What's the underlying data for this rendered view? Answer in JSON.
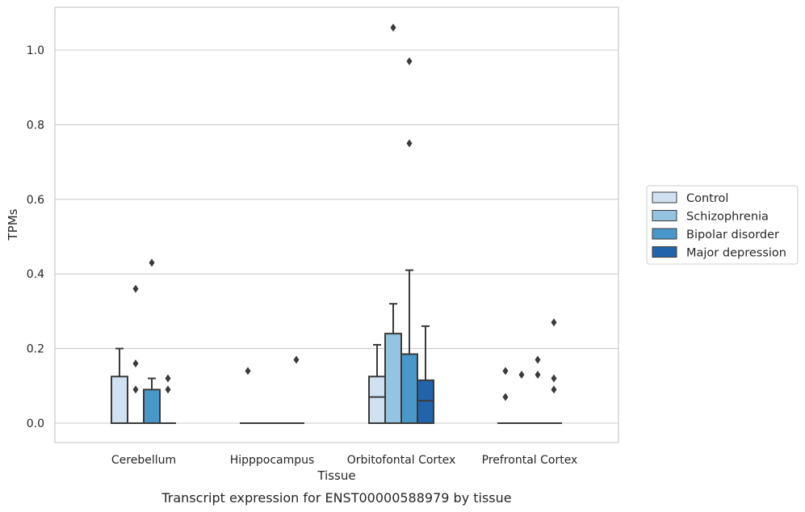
{
  "chart_data": {
    "type": "box",
    "caption": "Transcript expression for ENST00000588979 by tissue",
    "xlabel": "Tissue",
    "ylabel": "TPMs",
    "ylim": [
      -0.05,
      1.12
    ],
    "yticks": [
      0.0,
      0.2,
      0.4,
      0.6,
      0.8,
      1.0
    ],
    "ytick_labels": [
      "0.0",
      "0.2",
      "0.4",
      "0.6",
      "0.8",
      "1.0"
    ],
    "grid": "horizontal",
    "legend_position": "right",
    "categories": [
      "Cerebellum",
      "Hipppocampus",
      "Orbitofontal Cortex",
      "Prefrontal Cortex"
    ],
    "series": [
      {
        "name": "Control",
        "color": "#d0e1f2",
        "boxes": [
          {
            "q1": 0.0,
            "median": 0.0,
            "q3": 0.125,
            "whisker_low": 0.0,
            "whisker_high": 0.2,
            "outliers": []
          },
          {
            "q1": 0.0,
            "median": 0.0,
            "q3": 0.0,
            "whisker_low": 0.0,
            "whisker_high": 0.0,
            "outliers": [
              0.14
            ]
          },
          {
            "q1": 0.0,
            "median": 0.07,
            "q3": 0.125,
            "whisker_low": 0.0,
            "whisker_high": 0.21,
            "outliers": []
          },
          {
            "q1": 0.0,
            "median": 0.0,
            "q3": 0.0,
            "whisker_low": 0.0,
            "whisker_high": 0.0,
            "outliers": [
              0.14,
              0.07
            ]
          }
        ]
      },
      {
        "name": "Schizophrenia",
        "color": "#94c4df",
        "boxes": [
          {
            "q1": 0.0,
            "median": 0.0,
            "q3": 0.0,
            "whisker_low": 0.0,
            "whisker_high": 0.0,
            "outliers": [
              0.36,
              0.16,
              0.09
            ]
          },
          {
            "q1": 0.0,
            "median": 0.0,
            "q3": 0.0,
            "whisker_low": 0.0,
            "whisker_high": 0.0,
            "outliers": []
          },
          {
            "q1": 0.0,
            "median": 0.0,
            "q3": 0.24,
            "whisker_low": 0.0,
            "whisker_high": 0.32,
            "outliers": [
              1.06
            ]
          },
          {
            "q1": 0.0,
            "median": 0.0,
            "q3": 0.0,
            "whisker_low": 0.0,
            "whisker_high": 0.0,
            "outliers": [
              0.13
            ]
          }
        ]
      },
      {
        "name": "Bipolar disorder",
        "color": "#4a98c9",
        "boxes": [
          {
            "q1": 0.0,
            "median": 0.0,
            "q3": 0.09,
            "whisker_low": 0.0,
            "whisker_high": 0.12,
            "outliers": [
              0.43
            ]
          },
          {
            "q1": 0.0,
            "median": 0.0,
            "q3": 0.0,
            "whisker_low": 0.0,
            "whisker_high": 0.0,
            "outliers": []
          },
          {
            "q1": 0.0,
            "median": 0.0,
            "q3": 0.185,
            "whisker_low": 0.0,
            "whisker_high": 0.41,
            "outliers": [
              0.97,
              0.75
            ]
          },
          {
            "q1": 0.0,
            "median": 0.0,
            "q3": 0.0,
            "whisker_low": 0.0,
            "whisker_high": 0.0,
            "outliers": [
              0.17,
              0.13
            ]
          }
        ]
      },
      {
        "name": "Major depression",
        "color": "#2164ab",
        "boxes": [
          {
            "q1": 0.0,
            "median": 0.0,
            "q3": 0.0,
            "whisker_low": 0.0,
            "whisker_high": 0.0,
            "outliers": [
              0.12,
              0.09
            ]
          },
          {
            "q1": 0.0,
            "median": 0.0,
            "q3": 0.0,
            "whisker_low": 0.0,
            "whisker_high": 0.0,
            "outliers": [
              0.17
            ]
          },
          {
            "q1": 0.0,
            "median": 0.06,
            "q3": 0.115,
            "whisker_low": 0.0,
            "whisker_high": 0.26,
            "outliers": []
          },
          {
            "q1": 0.0,
            "median": 0.0,
            "q3": 0.0,
            "whisker_low": 0.0,
            "whisker_high": 0.0,
            "outliers": [
              0.27,
              0.12,
              0.09
            ]
          }
        ]
      }
    ]
  }
}
